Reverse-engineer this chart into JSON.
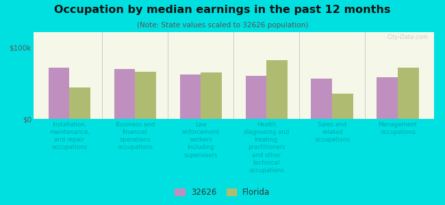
{
  "title": "Occupation by median earnings in the past 12 months",
  "subtitle": "(Note: State values scaled to 32626 population)",
  "background_color": "#00e0e0",
  "plot_bg_top": "#f5f8e8",
  "plot_bg_bottom": "#e8f2e0",
  "categories": [
    "Installation,\nmaintenance,\nand repair\noccupations",
    "Business and\nfinancial\noperations\noccupations",
    "Law\nenforcement\nworkers\nincluding\nsupervisors",
    "Health\ndiagnosing and\ntreating\npractitioners\nand other\ntechnical\noccupations",
    "Sales and\nrelated\noccupations",
    "Management\noccupations"
  ],
  "values_32626": [
    72000,
    70000,
    62000,
    60000,
    56000,
    58000
  ],
  "values_florida": [
    44000,
    66000,
    65000,
    82000,
    35000,
    72000
  ],
  "color_32626": "#bf8fbf",
  "color_florida": "#b0bb72",
  "ylim_max": 100000,
  "ytick_labels": [
    "$0",
    "$100k"
  ],
  "watermark": "City-Data.com",
  "legend_labels": [
    "32626",
    "Florida"
  ]
}
